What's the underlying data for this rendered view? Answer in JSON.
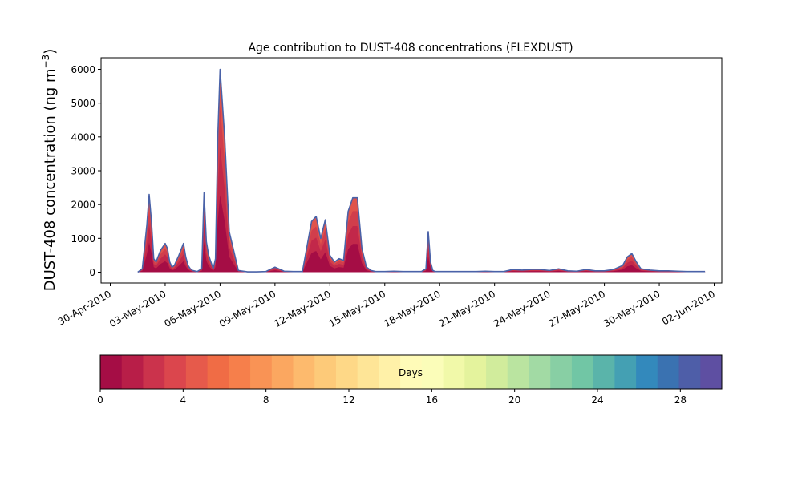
{
  "chart_data": {
    "type": "area",
    "title": "Age contribution to DUST-408 concentrations (FLEXDUST)",
    "ylabel": "DUST-408 concentration (ng m",
    "ylabel_sup": "−3",
    "ylabel_close": ")",
    "xlabel": "",
    "grid": false,
    "xlim": [
      "2010-04-30",
      "2010-06-02"
    ],
    "ylim": [
      -300,
      6300
    ],
    "x_ticks": [
      {
        "date": "2010-04-30",
        "label": "30-Apr-2010"
      },
      {
        "date": "2010-05-03",
        "label": "03-May-2010"
      },
      {
        "date": "2010-05-06",
        "label": "06-May-2010"
      },
      {
        "date": "2010-05-09",
        "label": "09-May-2010"
      },
      {
        "date": "2010-05-12",
        "label": "12-May-2010"
      },
      {
        "date": "2010-05-15",
        "label": "15-May-2010"
      },
      {
        "date": "2010-05-18",
        "label": "18-May-2010"
      },
      {
        "date": "2010-05-21",
        "label": "21-May-2010"
      },
      {
        "date": "2010-05-24",
        "label": "24-May-2010"
      },
      {
        "date": "2010-05-27",
        "label": "27-May-2010"
      },
      {
        "date": "2010-05-30",
        "label": "30-May-2010"
      },
      {
        "date": "2010-06-02",
        "label": "02-Jun-2010"
      }
    ],
    "y_ticks": [
      0,
      1000,
      2000,
      3000,
      4000,
      5000,
      6000
    ],
    "total_series": {
      "x": [
        "2010-05-01 12:00",
        "2010-05-01 18:00",
        "2010-05-02 00:00",
        "2010-05-02 03:00",
        "2010-05-02 06:00",
        "2010-05-02 09:00",
        "2010-05-02 12:00",
        "2010-05-02 18:00",
        "2010-05-03 00:00",
        "2010-05-03 03:00",
        "2010-05-03 06:00",
        "2010-05-03 09:00",
        "2010-05-03 12:00",
        "2010-05-03 18:00",
        "2010-05-04 00:00",
        "2010-05-04 03:00",
        "2010-05-04 06:00",
        "2010-05-04 09:00",
        "2010-05-04 12:00",
        "2010-05-04 18:00",
        "2010-05-05 00:00",
        "2010-05-05 03:00",
        "2010-05-05 06:00",
        "2010-05-05 09:00",
        "2010-05-05 12:00",
        "2010-05-05 15:00",
        "2010-05-05 18:00",
        "2010-05-05 21:00",
        "2010-05-06 00:00",
        "2010-05-06 06:00",
        "2010-05-06 12:00",
        "2010-05-07 00:00",
        "2010-05-07 12:00",
        "2010-05-08 00:00",
        "2010-05-08 12:00",
        "2010-05-09 00:00",
        "2010-05-09 12:00",
        "2010-05-10 00:00",
        "2010-05-10 12:00",
        "2010-05-11 00:00",
        "2010-05-11 06:00",
        "2010-05-11 12:00",
        "2010-05-11 18:00",
        "2010-05-12 00:00",
        "2010-05-12 06:00",
        "2010-05-12 12:00",
        "2010-05-12 18:00",
        "2010-05-13 00:00",
        "2010-05-13 06:00",
        "2010-05-13 12:00",
        "2010-05-13 18:00",
        "2010-05-14 00:00",
        "2010-05-14 06:00",
        "2010-05-14 12:00",
        "2010-05-15 00:00",
        "2010-05-15 12:00",
        "2010-05-16 00:00",
        "2010-05-16 12:00",
        "2010-05-17 00:00",
        "2010-05-17 06:00",
        "2010-05-17 09:00",
        "2010-05-17 12:00",
        "2010-05-17 15:00",
        "2010-05-17 18:00",
        "2010-05-18 00:00",
        "2010-05-18 12:00",
        "2010-05-19 00:00",
        "2010-05-19 12:00",
        "2010-05-20 00:00",
        "2010-05-20 12:00",
        "2010-05-21 00:00",
        "2010-05-21 12:00",
        "2010-05-22 00:00",
        "2010-05-22 12:00",
        "2010-05-23 00:00",
        "2010-05-23 12:00",
        "2010-05-24 00:00",
        "2010-05-24 12:00",
        "2010-05-25 00:00",
        "2010-05-25 12:00",
        "2010-05-26 00:00",
        "2010-05-26 12:00",
        "2010-05-27 00:00",
        "2010-05-27 12:00",
        "2010-05-28 00:00",
        "2010-05-28 06:00",
        "2010-05-28 12:00",
        "2010-05-28 18:00",
        "2010-05-29 00:00",
        "2010-05-29 12:00",
        "2010-05-30 00:00",
        "2010-05-30 12:00",
        "2010-05-31 00:00",
        "2010-05-31 12:00",
        "2010-06-01 00:00",
        "2010-06-01 12:00"
      ],
      "y": [
        0,
        100,
        1400,
        2300,
        1500,
        400,
        300,
        650,
        850,
        700,
        300,
        150,
        200,
        500,
        850,
        450,
        200,
        100,
        50,
        20,
        100,
        2350,
        900,
        500,
        300,
        100,
        400,
        4000,
        6000,
        4000,
        1200,
        50,
        10,
        10,
        20,
        150,
        30,
        20,
        20,
        1500,
        1650,
        1000,
        1550,
        500,
        300,
        400,
        350,
        1800,
        2200,
        2200,
        700,
        150,
        50,
        20,
        20,
        30,
        20,
        20,
        20,
        100,
        1200,
        300,
        50,
        20,
        20,
        20,
        20,
        20,
        20,
        30,
        20,
        20,
        80,
        60,
        80,
        80,
        50,
        100,
        40,
        30,
        80,
        40,
        40,
        80,
        200,
        450,
        550,
        300,
        100,
        60,
        40,
        40,
        30,
        20,
        20,
        20
      ]
    },
    "colorbar": {
      "label": "Days",
      "range": [
        0,
        30
      ],
      "tick_values": [
        0,
        4,
        8,
        12,
        16,
        20,
        24,
        28
      ],
      "tick_labels": [
        "0",
        "4",
        "8",
        "12",
        "16",
        "20",
        "24",
        "28"
      ],
      "colors": [
        "#a50d45",
        "#b81e48",
        "#cb334c",
        "#db464d",
        "#e65a4b",
        "#f06c45",
        "#f67f4b",
        "#f99355",
        "#fba760",
        "#fdba6d",
        "#fdca79",
        "#fed887",
        "#fee597",
        "#fff1a8",
        "#fffbb8",
        "#fbfdb9",
        "#f1f9a9",
        "#e4f39d",
        "#d1ec9c",
        "#bae4a0",
        "#a2daa4",
        "#88cfa4",
        "#71c6a5",
        "#5ab4aa",
        "#44a0b3",
        "#3389bc",
        "#3a72b1",
        "#4e5ea8",
        "#5e4fa2"
      ]
    },
    "outline_color": "#4a62a8"
  }
}
